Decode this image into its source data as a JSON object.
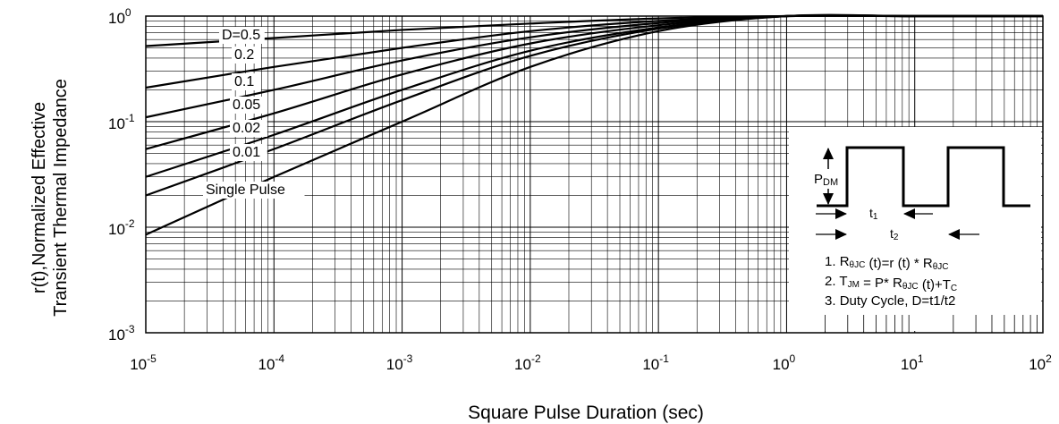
{
  "chart_data": {
    "type": "line",
    "title": "",
    "xlabel": "Square Pulse Duration (sec)",
    "ylabel_line1": "r(t),Normalized Effective",
    "ylabel_line2": "Transient Thermal Impedance",
    "x_scale": "log",
    "y_scale": "log",
    "xlim": [
      1e-05,
      100
    ],
    "ylim": [
      0.001,
      1
    ],
    "grid": true,
    "x_ticks": [
      {
        "base": "10",
        "exp": "-5"
      },
      {
        "base": "10",
        "exp": "-4"
      },
      {
        "base": "10",
        "exp": "-3"
      },
      {
        "base": "10",
        "exp": "-2"
      },
      {
        "base": "10",
        "exp": "-1"
      },
      {
        "base": "10",
        "exp": "0"
      },
      {
        "base": "10",
        "exp": "1"
      },
      {
        "base": "10",
        "exp": "2"
      }
    ],
    "y_ticks": [
      {
        "base": "10",
        "exp": "0"
      },
      {
        "base": "10",
        "exp": "-1"
      },
      {
        "base": "10",
        "exp": "-2"
      },
      {
        "base": "10",
        "exp": "-3"
      }
    ],
    "series": [
      {
        "name": "D=0.5",
        "x": [
          1e-05,
          0.0001,
          0.001,
          0.01,
          0.1,
          1,
          10,
          100
        ],
        "y": [
          0.52,
          0.62,
          0.74,
          0.85,
          0.95,
          1.0,
          1.0,
          1.0
        ]
      },
      {
        "name": "0.2",
        "x": [
          1e-05,
          0.0001,
          0.001,
          0.01,
          0.1,
          1,
          10,
          100
        ],
        "y": [
          0.21,
          0.33,
          0.5,
          0.72,
          0.9,
          1.0,
          1.0,
          1.0
        ]
      },
      {
        "name": "0.1",
        "x": [
          1e-05,
          0.0001,
          0.001,
          0.01,
          0.1,
          1,
          10,
          100
        ],
        "y": [
          0.11,
          0.2,
          0.38,
          0.63,
          0.86,
          1.0,
          1.0,
          1.0
        ]
      },
      {
        "name": "0.05",
        "x": [
          1e-05,
          0.0001,
          0.001,
          0.01,
          0.1,
          1,
          10,
          100
        ],
        "y": [
          0.055,
          0.12,
          0.28,
          0.55,
          0.82,
          1.0,
          1.0,
          1.0
        ]
      },
      {
        "name": "0.02",
        "x": [
          1e-05,
          0.0001,
          0.001,
          0.01,
          0.1,
          1,
          10,
          100
        ],
        "y": [
          0.03,
          0.075,
          0.2,
          0.47,
          0.78,
          1.0,
          1.0,
          1.0
        ]
      },
      {
        "name": "0.01",
        "x": [
          1e-05,
          0.0001,
          0.001,
          0.01,
          0.1,
          1,
          10,
          100
        ],
        "y": [
          0.02,
          0.055,
          0.16,
          0.42,
          0.76,
          1.0,
          1.0,
          1.0
        ]
      },
      {
        "name": "Single Pulse",
        "x": [
          1e-05,
          0.0001,
          0.001,
          0.01,
          0.1,
          1,
          10,
          100
        ],
        "y": [
          0.0085,
          0.03,
          0.1,
          0.33,
          0.72,
          1.0,
          1.0,
          1.0
        ]
      }
    ],
    "inset": {
      "pdm_label": "P",
      "pdm_sub": "DM",
      "t1_label": "t",
      "t1_sub": "1",
      "t2_label": "t",
      "t2_sub": "2",
      "notes": [
        {
          "num": "1. ",
          "parts": [
            [
              "R",
              ""
            ],
            [
              "θJC",
              "sub"
            ],
            [
              " (t)=r (t) * R",
              ""
            ],
            [
              "θJC",
              "sub"
            ]
          ]
        },
        {
          "num": "2. ",
          "parts": [
            [
              "T",
              ""
            ],
            [
              "JM",
              "sub"
            ],
            [
              " = P* R",
              ""
            ],
            [
              "θJC",
              "sub"
            ],
            [
              " (t)+T",
              ""
            ],
            [
              "C",
              "sub"
            ]
          ]
        },
        {
          "num": "3. ",
          "parts": [
            [
              "Duty Cycle, D=t1/t2",
              ""
            ]
          ]
        }
      ]
    }
  }
}
